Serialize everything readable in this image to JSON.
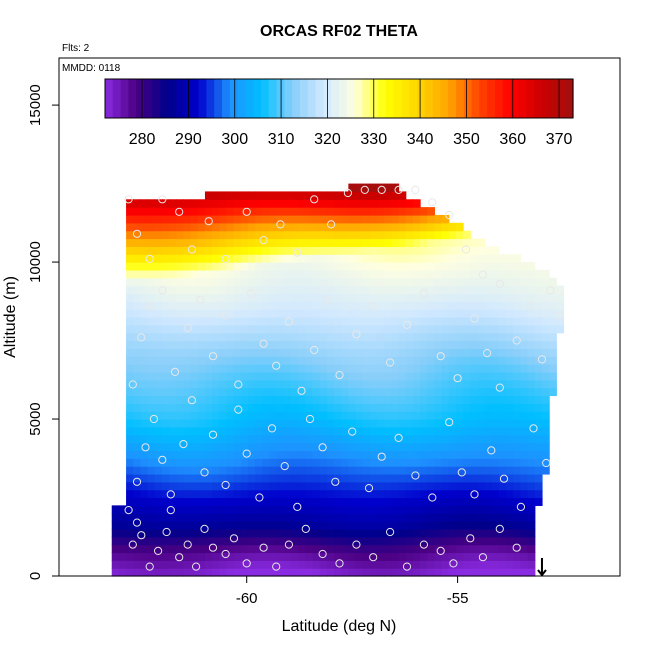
{
  "chart_data": {
    "type": "heatmap",
    "title": "ORCAS RF02 THETA",
    "note_flights": "Flts: 2",
    "note_date": "MMDD: 0118",
    "xlabel": "Latitude (deg N)",
    "ylabel": "Altitude (m)",
    "xlim": [
      -64.45,
      -51.15
    ],
    "ylim": [
      0,
      16500
    ],
    "x_ticks": [
      -60,
      -55
    ],
    "x_tick_labels": [
      "-60",
      "-55"
    ],
    "y_ticks": [
      0,
      5000,
      10000,
      15000
    ],
    "y_tick_labels": [
      "0",
      "5000",
      "10000",
      "15000"
    ],
    "colorbar": {
      "range": [
        272,
        373
      ],
      "ticks": [
        280,
        290,
        300,
        310,
        320,
        330,
        340,
        350,
        360,
        370
      ],
      "tick_labels": [
        "280",
        "290",
        "300",
        "310",
        "320",
        "330",
        "340",
        "350",
        "360",
        "370"
      ],
      "colors": [
        "#8a2be2",
        "#4b0082",
        "#00008b",
        "#0000cd",
        "#1e90ff",
        "#00bfff",
        "#87cefa",
        "#d0e8ff",
        "#ffffe0",
        "#ffff00",
        "#ffd700",
        "#ffa500",
        "#ff4500",
        "#ff0000",
        "#cc0000",
        "#a01010"
      ]
    },
    "grid": {
      "lat_range": [
        -62.9,
        -52.5
      ],
      "alt_range": [
        0,
        12500
      ],
      "cell_lat": 0.17,
      "cell_alt": 250
    },
    "profile": [
      {
        "alt": 0,
        "theta": 272
      },
      {
        "alt": 800,
        "theta": 278
      },
      {
        "alt": 1600,
        "theta": 287
      },
      {
        "alt": 3000,
        "theta": 295
      },
      {
        "alt": 5000,
        "theta": 306
      },
      {
        "alt": 7000,
        "theta": 313
      },
      {
        "alt": 8500,
        "theta": 320
      }
    ],
    "tropopause": {
      "alt_south": 9300,
      "alt_north": 11200,
      "theta_top": 373
    },
    "coverage_top": [
      {
        "lat": -62.9,
        "alt": 12000
      },
      {
        "lat": -58.3,
        "alt": 12300
      },
      {
        "lat": -56.6,
        "alt": 12500
      },
      {
        "lat": -55.4,
        "alt": 11500
      },
      {
        "lat": -54.2,
        "alt": 10500
      },
      {
        "lat": -53.0,
        "alt": 9800
      },
      {
        "lat": -52.5,
        "alt": 9200
      }
    ],
    "coverage_north": [
      {
        "alt": 0,
        "lat": -53.2
      },
      {
        "alt": 1800,
        "lat": -53.2
      },
      {
        "alt": 2500,
        "lat": -53.0
      },
      {
        "alt": 3500,
        "lat": -52.9
      },
      {
        "alt": 5000,
        "lat": -52.9
      },
      {
        "alt": 6000,
        "lat": -52.7
      },
      {
        "alt": 7500,
        "lat": -52.6
      },
      {
        "alt": 9000,
        "lat": -52.4
      },
      {
        "alt": 12500,
        "lat": -52.4
      }
    ],
    "coverage_south": [
      {
        "alt": 0,
        "lat": -63.2
      },
      {
        "alt": 2200,
        "lat": -63.2
      },
      {
        "alt": 2300,
        "lat": -62.9
      },
      {
        "alt": 12500,
        "lat": -62.9
      }
    ],
    "points": [
      [
        -62.7,
        1000
      ],
      [
        -62.6,
        1700
      ],
      [
        -62.5,
        1300
      ],
      [
        -62.3,
        300
      ],
      [
        -62.1,
        800
      ],
      [
        -61.9,
        1400
      ],
      [
        -61.8,
        2100
      ],
      [
        -61.6,
        600
      ],
      [
        -61.4,
        1000
      ],
      [
        -61.2,
        300
      ],
      [
        -61.0,
        1500
      ],
      [
        -60.8,
        900
      ],
      [
        -60.5,
        700
      ],
      [
        -60.3,
        1200
      ],
      [
        -60.0,
        400
      ],
      [
        -59.6,
        900
      ],
      [
        -59.3,
        300
      ],
      [
        -59.0,
        1000
      ],
      [
        -58.6,
        1500
      ],
      [
        -58.2,
        700
      ],
      [
        -57.8,
        400
      ],
      [
        -57.4,
        1000
      ],
      [
        -57.0,
        600
      ],
      [
        -56.6,
        1400
      ],
      [
        -56.2,
        300
      ],
      [
        -55.8,
        1000
      ],
      [
        -55.4,
        800
      ],
      [
        -55.1,
        400
      ],
      [
        -54.7,
        1200
      ],
      [
        -54.4,
        600
      ],
      [
        -54.0,
        1500
      ],
      [
        -53.6,
        900
      ],
      [
        -62.8,
        2100
      ],
      [
        -62.6,
        3000
      ],
      [
        -62.4,
        4100
      ],
      [
        -62.2,
        5000
      ],
      [
        -62.0,
        3700
      ],
      [
        -61.8,
        2600
      ],
      [
        -61.5,
        4200
      ],
      [
        -61.3,
        5600
      ],
      [
        -61.0,
        3300
      ],
      [
        -60.8,
        4500
      ],
      [
        -60.5,
        2900
      ],
      [
        -60.2,
        5300
      ],
      [
        -60.0,
        3900
      ],
      [
        -59.7,
        2500
      ],
      [
        -59.4,
        4700
      ],
      [
        -59.1,
        3500
      ],
      [
        -58.8,
        2200
      ],
      [
        -58.5,
        5000
      ],
      [
        -58.2,
        4100
      ],
      [
        -57.9,
        3000
      ],
      [
        -57.5,
        4600
      ],
      [
        -57.1,
        2800
      ],
      [
        -56.8,
        3800
      ],
      [
        -56.4,
        4400
      ],
      [
        -56.0,
        3200
      ],
      [
        -55.6,
        2500
      ],
      [
        -55.2,
        4900
      ],
      [
        -54.9,
        3300
      ],
      [
        -54.6,
        2600
      ],
      [
        -54.2,
        4000
      ],
      [
        -53.9,
        3100
      ],
      [
        -53.5,
        2200
      ],
      [
        -53.2,
        4700
      ],
      [
        -52.9,
        3600
      ],
      [
        -62.7,
        6100
      ],
      [
        -62.5,
        7600
      ],
      [
        -62.3,
        8600
      ],
      [
        -62.0,
        9100
      ],
      [
        -61.7,
        6500
      ],
      [
        -61.4,
        7900
      ],
      [
        -61.1,
        8800
      ],
      [
        -60.8,
        7000
      ],
      [
        -60.5,
        8300
      ],
      [
        -60.2,
        6100
      ],
      [
        -59.9,
        9000
      ],
      [
        -59.6,
        7400
      ],
      [
        -59.3,
        6700
      ],
      [
        -59.0,
        8100
      ],
      [
        -58.7,
        5900
      ],
      [
        -58.4,
        7200
      ],
      [
        -58.1,
        8800
      ],
      [
        -57.8,
        6400
      ],
      [
        -57.4,
        7700
      ],
      [
        -57.0,
        8600
      ],
      [
        -56.6,
        6800
      ],
      [
        -56.2,
        8000
      ],
      [
        -55.8,
        9000
      ],
      [
        -55.4,
        7000
      ],
      [
        -55.0,
        6300
      ],
      [
        -54.6,
        8200
      ],
      [
        -54.3,
        7100
      ],
      [
        -54.0,
        6000
      ],
      [
        -53.6,
        7500
      ],
      [
        -53.3,
        8600
      ],
      [
        -53.0,
        6900
      ],
      [
        -52.8,
        9100
      ],
      [
        -52.6,
        8300
      ],
      [
        -62.8,
        12000
      ],
      [
        -62.6,
        10900
      ],
      [
        -62.3,
        10100
      ],
      [
        -62.0,
        12000
      ],
      [
        -61.6,
        11600
      ],
      [
        -61.3,
        10400
      ],
      [
        -60.9,
        11300
      ],
      [
        -60.5,
        10100
      ],
      [
        -60.0,
        11600
      ],
      [
        -59.6,
        10700
      ],
      [
        -59.2,
        11200
      ],
      [
        -58.8,
        10300
      ],
      [
        -58.4,
        12000
      ],
      [
        -58.0,
        11200
      ],
      [
        -57.6,
        12200
      ],
      [
        -57.2,
        12300
      ],
      [
        -56.8,
        12300
      ],
      [
        -56.4,
        12300
      ],
      [
        -56.0,
        12300
      ],
      [
        -55.6,
        11900
      ],
      [
        -55.2,
        11500
      ],
      [
        -54.8,
        10400
      ],
      [
        -54.4,
        9600
      ],
      [
        -54.0,
        9300
      ]
    ],
    "marker_lat": -53.0
  }
}
